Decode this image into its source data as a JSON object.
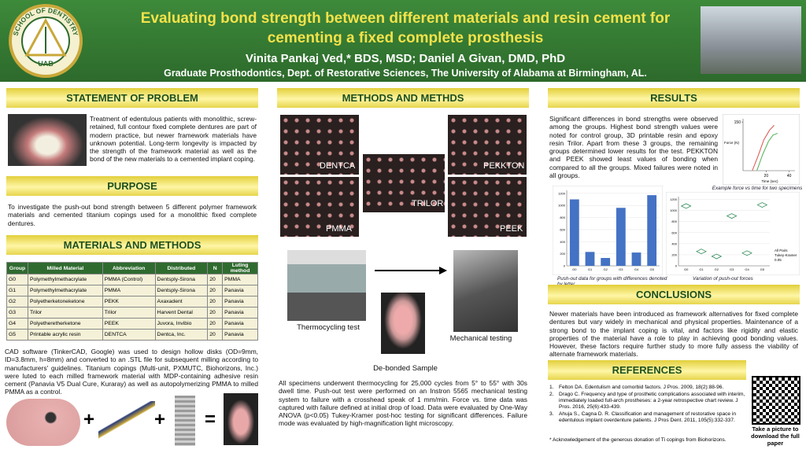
{
  "header": {
    "title_lines": [
      "Evaluating bond strength between different materials and resin cement for",
      "cementing a fixed complete prosthesis"
    ],
    "authors": "Vinita Pankaj Ved,* BDS, MSD;  Daniel A Givan, DMD, PhD",
    "affiliation": "Graduate Prosthodontics, Dept. of Restorative Sciences, The University of Alabama at Birmingham, AL.",
    "logo_text": "SCHOOL OF DENTISTRY",
    "logo_mark": "UAB"
  },
  "statement": {
    "heading": "STATEMENT OF PROBLEM",
    "text": "Treatment of edentulous patients with monolithic, screw-retained, full contour fixed complete dentures are part of modern practice, but newer framework materials have unknown potential. Long-term longevity is impacted by the strength of the framework material as well as the bond of the new materials to a cemented implant coping."
  },
  "purpose": {
    "heading": "PURPOSE",
    "text": "To investigate the push-out bond strength between 5 different polymer framework materials and cemented titanium copings used for a monolithic fixed complete dentures."
  },
  "materials": {
    "heading": "MATERIALS AND METHODS",
    "table": {
      "columns": [
        "Group",
        "Milled Material",
        "Abbreviation",
        "Distributed",
        "N",
        "Luting method"
      ],
      "rows": [
        [
          "G0",
          "Polymethylmethacrylate",
          "PMMA (Control)",
          "Dentsply-Sirona",
          "20",
          "PMMA"
        ],
        [
          "G1",
          "Polymethylmethacrylate",
          "PMMA",
          "Dentsply-Sirona",
          "20",
          "Panavia"
        ],
        [
          "G2",
          "Polyetherketoneketone",
          "PEKK",
          "Axaxadent",
          "20",
          "Panavia"
        ],
        [
          "G3",
          "Trilor",
          "Trilor",
          "Harvent Dental",
          "20",
          "Panavia"
        ],
        [
          "G4",
          "Polyetheretherketone",
          "PEEK",
          "Juvora, Invibio",
          "20",
          "Panavia"
        ],
        [
          "G5",
          "Printable acrylic resin",
          "DENTCA",
          "Dentca, Inc.",
          "20",
          "Panavia"
        ]
      ]
    },
    "text": "CAD software (TinkerCAD, Google) was used to design hollow disks (OD=9mm, ID=3.8mm, h=8mm) and converted to an .STL file for subsequent milling according to manufacturers' guidelines. Titanium copings (Multi-unit, PXMUTC, Biohorizons, Inc.) were luted to each milled framework material with MDP-containing adhesive resin cement (Panavia V5 Dual Cure, Kuraray) as well as autopolymerizing PMMA to milled PMMA as a control.",
    "plus": "+",
    "equals": "="
  },
  "methods": {
    "heading": "METHODS AND METHDS",
    "image_labels": [
      "DENTCA",
      "TRILOR",
      "PEKKTON",
      "PMMA",
      "PEEK"
    ],
    "captions": {
      "thermocycling": "Thermocycling test",
      "mechanical": "Mechanical testing",
      "debonded": "De-bonded Sample"
    },
    "text": "All specimens underwent thermocycling for 25,000 cycles from 5° to 55° with 30s dwell time.  Push-out test were performed on an Instron 5565 mechanical testing system to failure with a crosshead speak of 1 mm/min.  Force vs. time data was captured with failure defined at initial drop of load.  Data were evaluated by One-Way ANOVA (p<0.05) Tukey-Kramer post-hoc testing for significant differences.  Failure mode was evaluated by high-magnification light microscopy."
  },
  "results": {
    "heading": "RESULTS",
    "text": "Significant differences in bond strengths were observed among the groups. Highest bond strength values were noted for control group, 3D printable resin and epoxy resin Trilor. Apart from these 3 groups, the remaining groups determined lower results for the test. PEKKTON and PEEK showed least values of bonding when compared to all the groups.  Mixed failures were noted in all groups.",
    "force_chart": {
      "caption": "Example force vs time for two specimens",
      "ylabel": "Force (N)",
      "xlabel": "Time (sec)",
      "xlim": [
        0,
        45
      ],
      "ylim": [
        0,
        160
      ],
      "xticks": [
        20,
        40
      ],
      "yticks": [
        150
      ],
      "series": [
        {
          "color": "#d9534f",
          "x": [
            8,
            13,
            18,
            23,
            27
          ],
          "values": [
            0,
            45,
            95,
            125,
            140
          ]
        },
        {
          "color": "#4caf50",
          "x": [
            12,
            17,
            22,
            26,
            30
          ],
          "values": [
            0,
            50,
            90,
            110,
            115
          ]
        }
      ]
    },
    "bar_chart": {
      "caption": "Push-out data for groups with differences denoted by letter",
      "categories": [
        "G0",
        "G1",
        "G2",
        "G3",
        "G4",
        "G5"
      ],
      "values": [
        1100,
        230,
        130,
        960,
        220,
        1170
      ],
      "color": "#4472c4",
      "ylim": [
        0,
        1250
      ],
      "yticks": [
        0,
        200,
        400,
        600,
        800,
        1000,
        1200
      ]
    },
    "scatter_chart": {
      "caption": "Variation of push-out forces",
      "categories": [
        "G0",
        "G1",
        "G2",
        "G3",
        "G4",
        "G5"
      ],
      "values": [
        1080,
        260,
        170,
        900,
        230,
        1100
      ],
      "color": "#2e8b57",
      "ylim": [
        0,
        1250
      ],
      "yticks": [
        0,
        200,
        400,
        600,
        800,
        1000,
        1200
      ],
      "legend": [
        "All Pairs",
        "Tukey-Kramer",
        "0.05"
      ]
    }
  },
  "conclusions": {
    "heading": "CONCLUSIONS",
    "text": "Newer materials have been introduced as framework alternatives for fixed complete dentures but vary widely in mechanical and physical properties.  Maintenance of a strong bond to the implant coping is vital, and factors like rigidity and elastic properties of the material have a role to play in achieving good bonding values.  However, these factors require further study to more fully assess the viability of alternate framework materials."
  },
  "references": {
    "heading": "REFERENCES",
    "items": [
      {
        "number": "1.",
        "text": "Felton DA. Edentulism and comorbid factors. J Pros. 2009, 18(2):88-96."
      },
      {
        "number": "2.",
        "text": "Drago C. Frequency and type of prosthetic complications associated with interim, immediately loaded full-arch prostheses: a 2-year retrospective chart review. J Pros. 2016, 25(6):433-439."
      },
      {
        "number": "3.",
        "text": "Ahuja S., Cagna D. R. Classification and management of restorative space in edentulous implant overdenture patients. J Pros Dent. 2011, 105(5):332-337."
      }
    ],
    "acknowledgement": "* Acknowledgement of the generous donation of Ti copings from Biohorizons."
  },
  "qr_caption": "Take a picture to download the full paper"
}
